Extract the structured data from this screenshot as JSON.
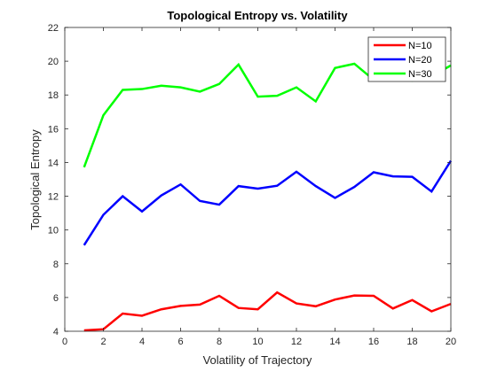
{
  "chart_data": {
    "type": "line",
    "title": "Topological Entropy vs. Volatility",
    "xlabel": "Volatility of Trajectory",
    "ylabel": "Topological Entropy",
    "xlim": [
      0,
      20
    ],
    "ylim": [
      4,
      22
    ],
    "xticks": [
      0,
      2,
      4,
      6,
      8,
      10,
      12,
      14,
      16,
      18,
      20
    ],
    "yticks": [
      4,
      6,
      8,
      10,
      12,
      14,
      16,
      18,
      20,
      22
    ],
    "grid": false,
    "legend_position": "top-right",
    "x": [
      1,
      2,
      3,
      4,
      5,
      6,
      7,
      8,
      9,
      10,
      11,
      12,
      13,
      14,
      15,
      16,
      17,
      18,
      19,
      20
    ],
    "series": [
      {
        "name": "N=10",
        "color": "#ff0000",
        "values": [
          4.05,
          4.12,
          5.05,
          4.92,
          5.3,
          5.5,
          5.58,
          6.1,
          5.38,
          5.3,
          6.3,
          5.65,
          5.48,
          5.88,
          6.12,
          6.1,
          5.35,
          5.85,
          5.18,
          5.62
        ]
      },
      {
        "name": "N=20",
        "color": "#0000ff",
        "values": [
          9.1,
          10.9,
          12.0,
          11.1,
          12.05,
          12.7,
          11.72,
          11.5,
          12.6,
          12.45,
          12.62,
          13.45,
          12.6,
          11.9,
          12.55,
          13.42,
          13.18,
          13.15,
          12.28,
          14.1
        ]
      },
      {
        "name": "N=30",
        "color": "#00ff00",
        "values": [
          13.72,
          16.8,
          18.3,
          18.35,
          18.55,
          18.45,
          18.2,
          18.65,
          19.8,
          17.9,
          17.95,
          18.45,
          17.62,
          19.6,
          19.85,
          18.9,
          19.1,
          18.85,
          19.1,
          19.75
        ]
      }
    ]
  }
}
